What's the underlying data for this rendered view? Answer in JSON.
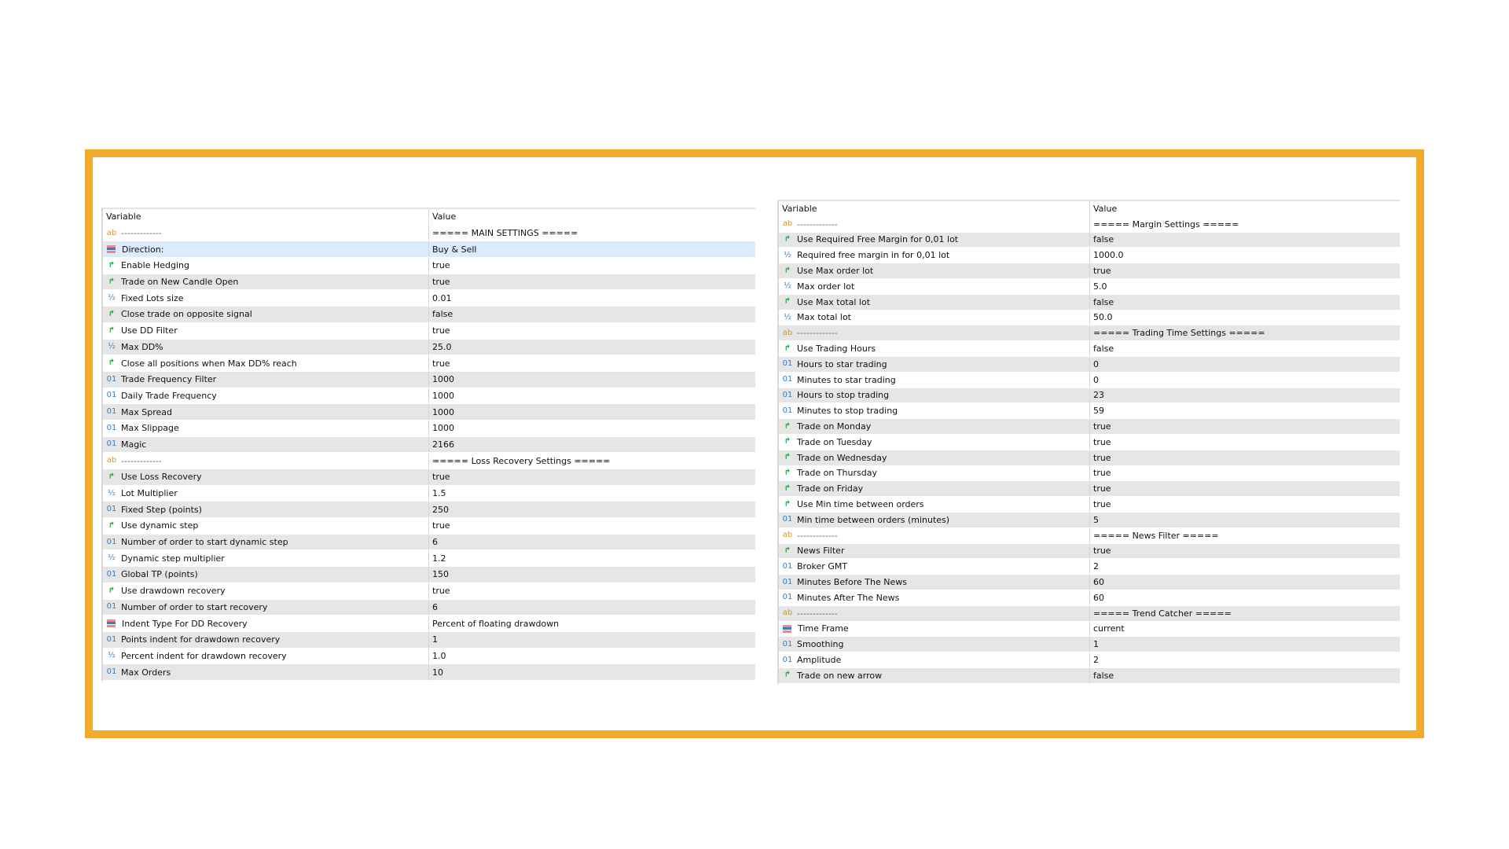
{
  "columns": {
    "variable": "Variable",
    "value": "Value"
  },
  "colors": {
    "frame": "#F0AC2A",
    "selected_row": "#dcebfa",
    "alt_row": "#e6e6e6"
  },
  "left_table": {
    "selected_index": 1,
    "rows": [
      {
        "type": "ab",
        "name": "-------------",
        "value": "===== MAIN SETTINGS ====="
      },
      {
        "type": "enum",
        "name": "Direction:",
        "value": "Buy & Sell"
      },
      {
        "type": "bool",
        "name": "Enable Hedging",
        "value": "true"
      },
      {
        "type": "bool",
        "name": "Trade on New Candle Open",
        "value": "true"
      },
      {
        "type": "double",
        "name": "Fixed Lots size",
        "value": "0.01"
      },
      {
        "type": "bool",
        "name": "Close trade on opposite signal",
        "value": "false"
      },
      {
        "type": "bool",
        "name": "Use DD Filter",
        "value": "true"
      },
      {
        "type": "double",
        "name": "Max DD%",
        "value": "25.0"
      },
      {
        "type": "bool",
        "name": "Close all positions when Max DD% reach",
        "value": "true"
      },
      {
        "type": "int",
        "name": "Trade Frequency Filter",
        "value": "1000"
      },
      {
        "type": "int",
        "name": "Daily Trade Frequency",
        "value": "1000"
      },
      {
        "type": "int",
        "name": "Max Spread",
        "value": "1000"
      },
      {
        "type": "int",
        "name": "Max Slippage",
        "value": "1000"
      },
      {
        "type": "int",
        "name": "Magic",
        "value": "2166"
      },
      {
        "type": "ab",
        "name": "-------------",
        "value": "===== Loss Recovery Settings ====="
      },
      {
        "type": "bool",
        "name": "Use Loss Recovery",
        "value": "true"
      },
      {
        "type": "double",
        "name": "Lot Multiplier",
        "value": "1.5"
      },
      {
        "type": "int",
        "name": "Fixed Step (points)",
        "value": "250"
      },
      {
        "type": "bool",
        "name": "Use dynamic step",
        "value": "true"
      },
      {
        "type": "int",
        "name": "Number of order to start dynamic step",
        "value": "6"
      },
      {
        "type": "double",
        "name": "Dynamic step multiplier",
        "value": "1.2"
      },
      {
        "type": "int",
        "name": "Global TP (points)",
        "value": "150"
      },
      {
        "type": "bool",
        "name": "Use drawdown recovery",
        "value": "true"
      },
      {
        "type": "int",
        "name": "Number of order to start recovery",
        "value": "6"
      },
      {
        "type": "enum",
        "name": "Indent Type For DD Recovery",
        "value": "Percent of floating drawdown"
      },
      {
        "type": "int",
        "name": "Points indent for drawdown recovery",
        "value": "1"
      },
      {
        "type": "double",
        "name": "Percent indent for drawdown recovery",
        "value": "1.0"
      },
      {
        "type": "int",
        "name": "Max Orders",
        "value": "10"
      }
    ]
  },
  "right_table": {
    "rows": [
      {
        "type": "ab",
        "name": "-------------",
        "value": "===== Margin Settings ====="
      },
      {
        "type": "bool",
        "name": "Use Required Free Margin for 0,01 lot",
        "value": "false"
      },
      {
        "type": "double",
        "name": "Required free margin in for 0,01 lot",
        "value": "1000.0"
      },
      {
        "type": "bool",
        "name": "Use Max order lot",
        "value": "true"
      },
      {
        "type": "double",
        "name": "Max order lot",
        "value": "5.0"
      },
      {
        "type": "bool",
        "name": "Use Max total lot",
        "value": "false"
      },
      {
        "type": "double",
        "name": "Max total lot",
        "value": "50.0"
      },
      {
        "type": "ab",
        "name": "-------------",
        "value": "===== Trading Time Settings ====="
      },
      {
        "type": "bool",
        "name": "Use Trading Hours",
        "value": "false"
      },
      {
        "type": "int",
        "name": "Hours to star trading",
        "value": "0"
      },
      {
        "type": "int",
        "name": "Minutes to star trading",
        "value": "0"
      },
      {
        "type": "int",
        "name": "Hours to stop trading",
        "value": "23"
      },
      {
        "type": "int",
        "name": "Minutes to stop trading",
        "value": "59"
      },
      {
        "type": "bool",
        "name": "Trade on Monday",
        "value": "true"
      },
      {
        "type": "bool",
        "name": "Trade on Tuesday",
        "value": "true"
      },
      {
        "type": "bool",
        "name": "Trade on Wednesday",
        "value": "true"
      },
      {
        "type": "bool",
        "name": "Trade on Thursday",
        "value": "true"
      },
      {
        "type": "bool",
        "name": "Trade on Friday",
        "value": "true"
      },
      {
        "type": "bool",
        "name": "Use Min time between orders",
        "value": "true"
      },
      {
        "type": "int",
        "name": "Min time between orders (minutes)",
        "value": "5"
      },
      {
        "type": "ab",
        "name": "-------------",
        "value": "===== News Filter ====="
      },
      {
        "type": "bool",
        "name": "News Filter",
        "value": "true"
      },
      {
        "type": "int",
        "name": "Broker GMT",
        "value": "2"
      },
      {
        "type": "int",
        "name": "Minutes Before The News",
        "value": "60"
      },
      {
        "type": "int",
        "name": "Minutes After The News",
        "value": "60"
      },
      {
        "type": "ab",
        "name": "-------------",
        "value": "===== Trend Catcher ====="
      },
      {
        "type": "enum",
        "name": "Time Frame",
        "value": "current"
      },
      {
        "type": "int",
        "name": "Smoothing",
        "value": "1"
      },
      {
        "type": "int",
        "name": "Amplitude",
        "value": "2"
      },
      {
        "type": "bool",
        "name": "Trade on new arrow",
        "value": "false"
      }
    ]
  }
}
